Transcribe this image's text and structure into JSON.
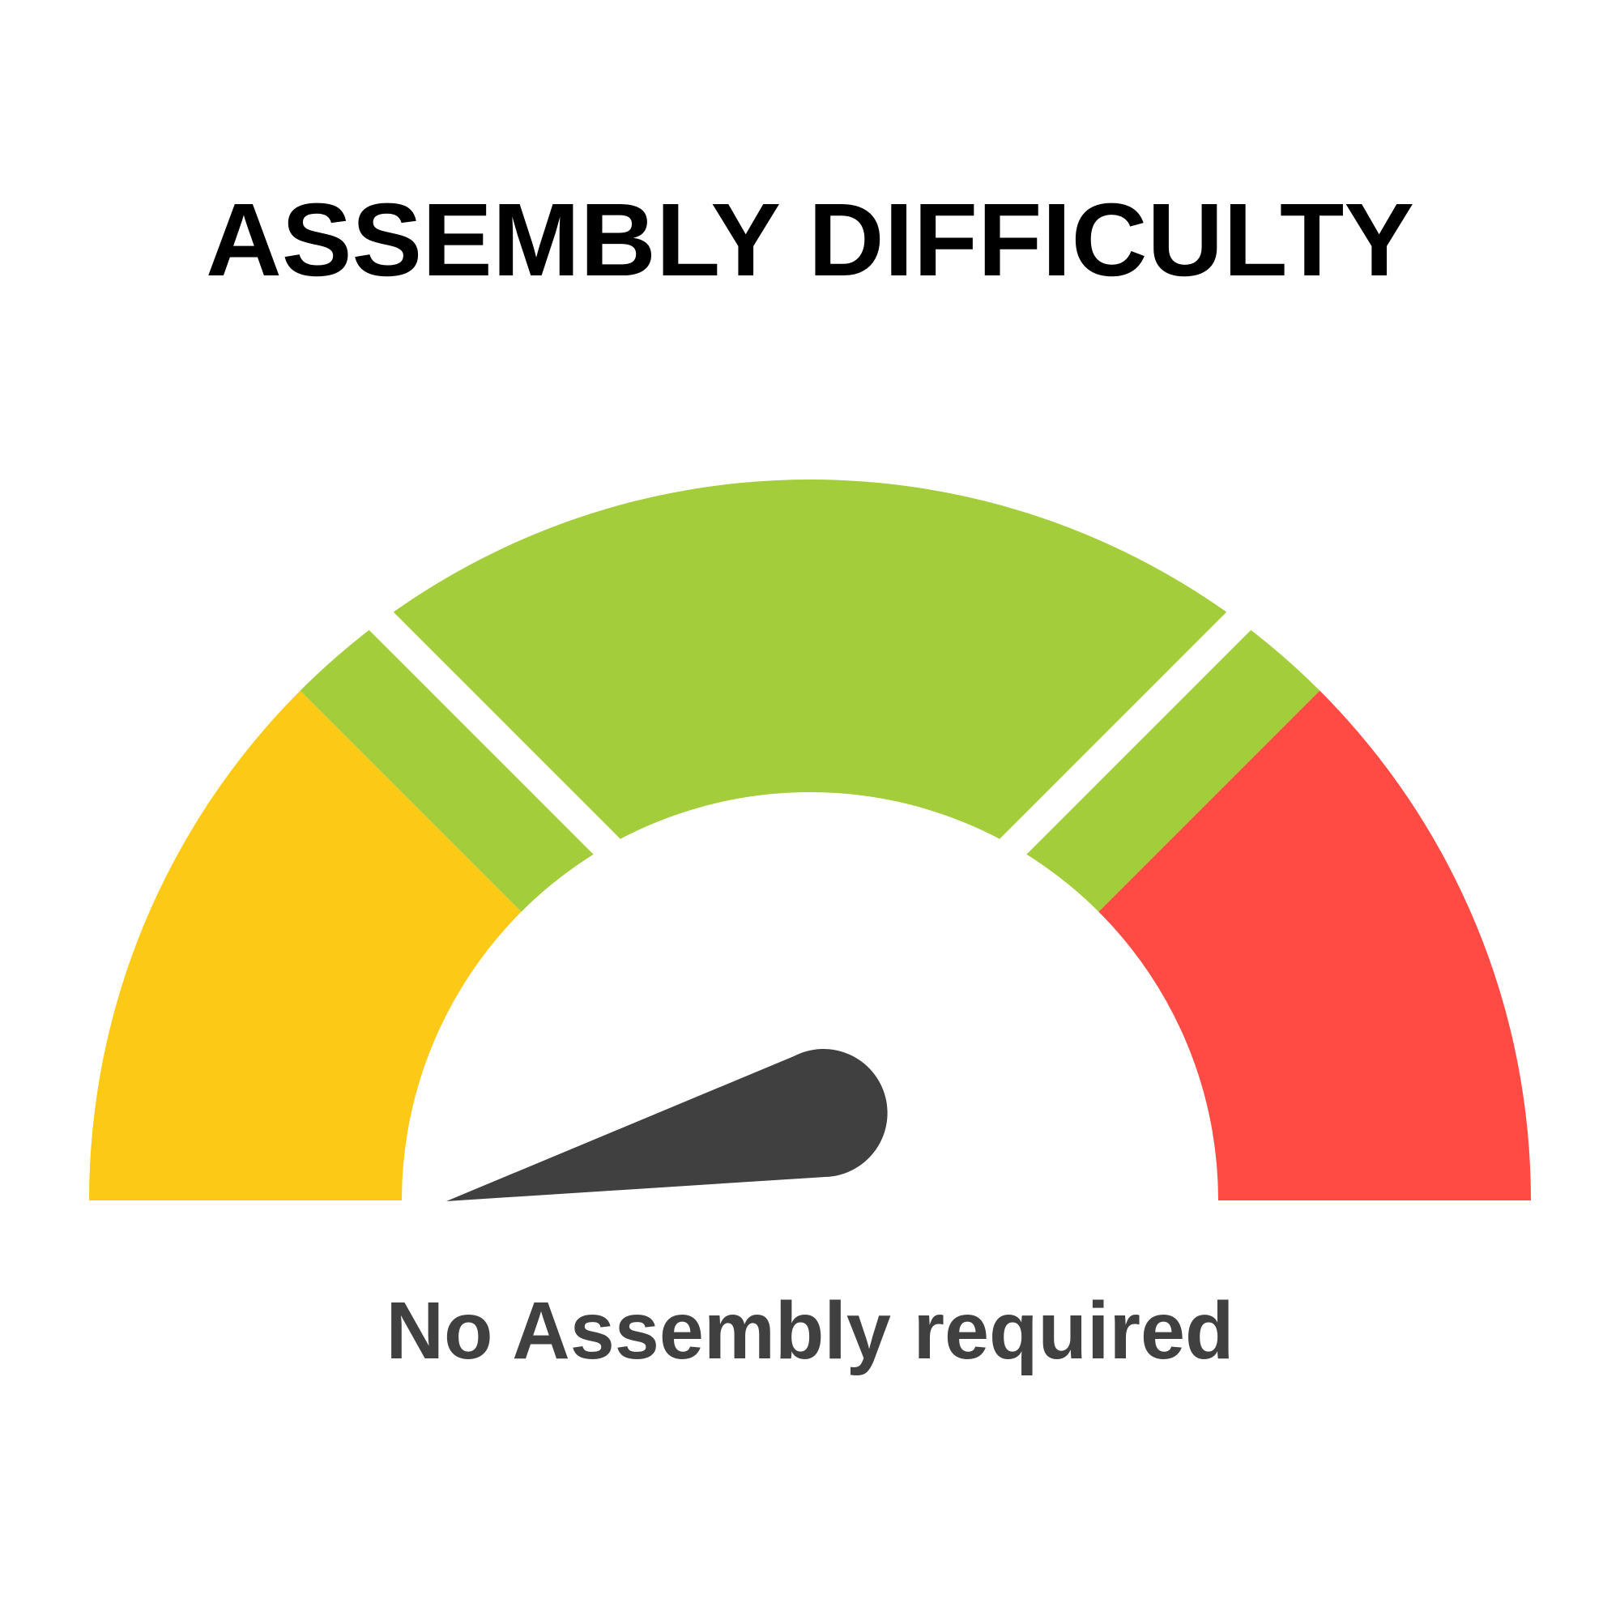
{
  "title": "ASSEMBLY DIFFICULTY",
  "subtitle": "No Assembly required",
  "gauge": {
    "segments": [
      {
        "color": "#FDC917"
      },
      {
        "color": "#A3CD3B"
      },
      {
        "color": "#FF4B44"
      }
    ],
    "needle_color": "#404041",
    "level": 0
  },
  "text_color": "#404041"
}
